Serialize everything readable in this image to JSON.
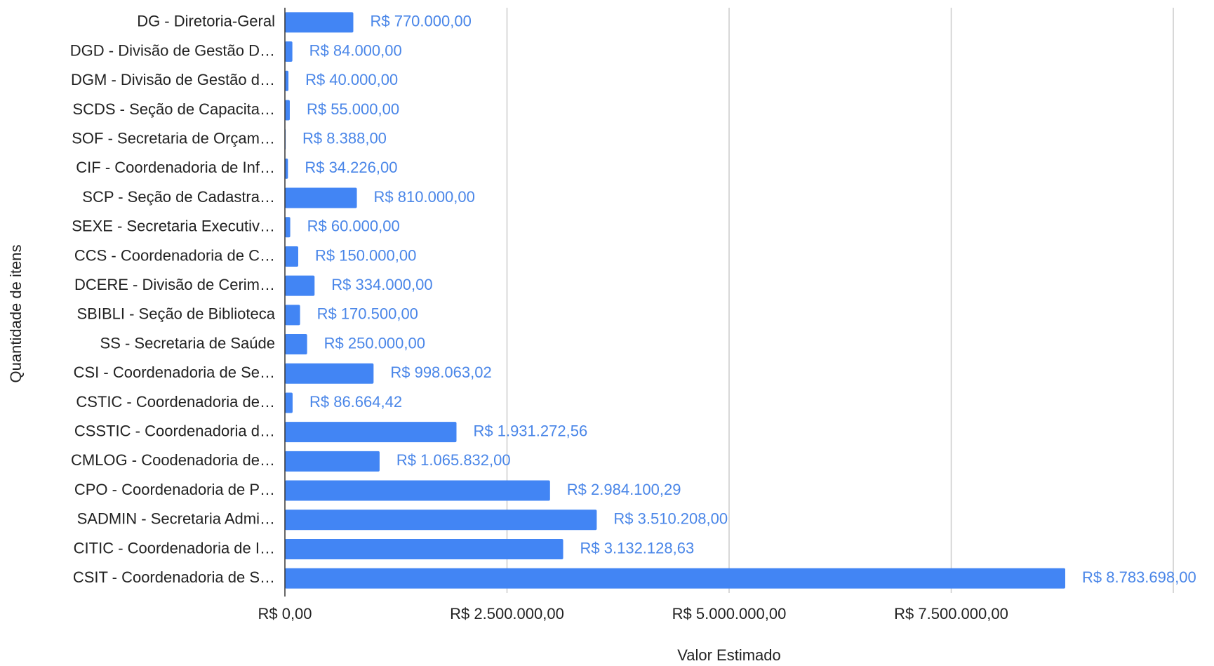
{
  "chart_data": {
    "type": "bar",
    "orientation": "horizontal",
    "xlabel": "Valor Estimado",
    "ylabel": "Quantidade de itens",
    "categories": [
      "DG - Diretoria-Geral",
      "DGD - Divisão de Gestão D…",
      "DGM - Divisão de Gestão d…",
      "SCDS - Seção de Capacita…",
      "SOF - Secretaria de Orçam…",
      "CIF - Coordenadoria de Inf…",
      "SCP - Seção de Cadastra…",
      "SEXE - Secretaria Executiv…",
      "CCS - Coordenadoria de C…",
      "DCERE - Divisão de Cerim…",
      "SBIBLI - Seção de Biblioteca",
      "SS - Secretaria de Saúde",
      "CSI - Coordenadoria de Se…",
      "CSTIC - Coordenadoria de…",
      "CSSTIC - Coordenadoria d…",
      "CMLOG - Coodenadoria de…",
      "CPO - Coordenadoria de P…",
      "SADMIN - Secretaria Admi…",
      "CITIC - Coordenadoria de I…",
      "CSIT - Coordenadoria de S…"
    ],
    "values": [
      770000,
      84000,
      40000,
      55000,
      8388,
      34226,
      810000,
      60000,
      150000,
      334000,
      170500,
      250000,
      998063.02,
      86664.42,
      1931272.56,
      1065832,
      2984100.29,
      3510208,
      3132128.63,
      8783698
    ],
    "value_labels": [
      "R$ 770.000,00",
      "R$ 84.000,00",
      "R$ 40.000,00",
      "R$ 55.000,00",
      "R$ 8.388,00",
      "R$ 34.226,00",
      "R$ 810.000,00",
      "R$ 60.000,00",
      "R$ 150.000,00",
      "R$ 334.000,00",
      "R$ 170.500,00",
      "R$ 250.000,00",
      "R$ 998.063,02",
      "R$ 86.664,42",
      "R$ 1.931.272,56",
      "R$ 1.065.832,00",
      "R$ 2.984.100,29",
      "R$ 3.510.208,00",
      "R$ 3.132.128,63",
      "R$ 8.783.698,00"
    ],
    "color": "#4285f4",
    "xlim": [
      0,
      10000000
    ],
    "xticks": [
      {
        "value": 0,
        "label": "R$ 0,00"
      },
      {
        "value": 2500000,
        "label": "R$ 2.500.000,00"
      },
      {
        "value": 5000000,
        "label": "R$ 5.000.000,00"
      },
      {
        "value": 7500000,
        "label": "R$ 7.500.000,00"
      }
    ],
    "grid": true
  }
}
